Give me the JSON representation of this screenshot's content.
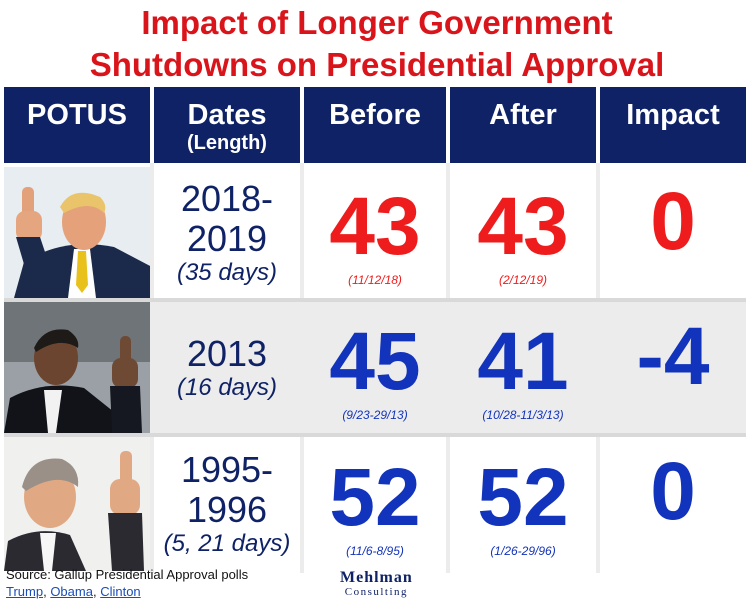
{
  "title": {
    "line1": "Impact of Longer Government",
    "line2": "Shutdowns on Presidential Approval"
  },
  "headers": {
    "potus": "POTUS",
    "dates": "Dates",
    "dates_sub": "(Length)",
    "before": "Before",
    "after": "After",
    "impact": "Impact"
  },
  "rows": [
    {
      "president": "Trump",
      "dates_line1": "2018-",
      "dates_line2": "2019",
      "length": "(35 days)",
      "before": "43",
      "before_date": "(11/12/18)",
      "after": "43",
      "after_date": "(2/12/19)",
      "impact": "0",
      "color": "#ee1c1c"
    },
    {
      "president": "Obama",
      "dates_line1": "2013",
      "dates_line2": "",
      "length": "(16 days)",
      "before": "45",
      "before_date": "(9/23-29/13)",
      "after": "41",
      "after_date": "(10/28-11/3/13)",
      "impact": "-4",
      "color": "#1233bb"
    },
    {
      "president": "Clinton",
      "dates_line1": "1995-",
      "dates_line2": "1996",
      "length": "(5, 21 days)",
      "before": "52",
      "before_date": "(11/6-8/95)",
      "after": "52",
      "after_date": "(1/26-29/96)",
      "impact": "0",
      "color": "#1233bb"
    }
  ],
  "footer": {
    "source": "Source: Gallup Presidential Approval polls",
    "links": [
      "Trump",
      "Obama",
      "Clinton"
    ],
    "logo_line1": "Mehlman",
    "logo_line2": "Consulting"
  }
}
